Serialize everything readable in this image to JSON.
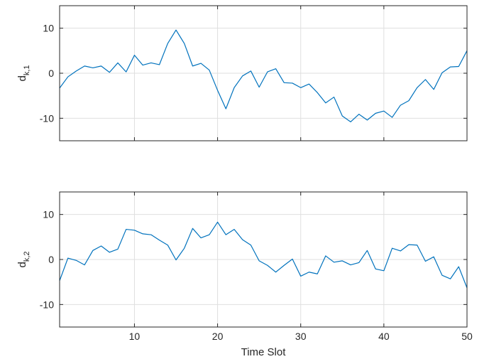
{
  "chart_data": [
    {
      "type": "line",
      "ylabel": "d",
      "ylabel_sub": "k,1",
      "xlabel": "",
      "xlim": [
        1,
        50
      ],
      "ylim": [
        -15,
        15
      ],
      "xticks": [
        10,
        20,
        30,
        40,
        50
      ],
      "yticks": [
        -10,
        0,
        10
      ],
      "grid": true,
      "line_color": "#0072BD",
      "series": [
        {
          "x": [
            1,
            2,
            3,
            4,
            5,
            6,
            7,
            8,
            9,
            10,
            11,
            12,
            13,
            14,
            15,
            16,
            17,
            18,
            19,
            20,
            21,
            22,
            23,
            24,
            25,
            26,
            27,
            28,
            29,
            30,
            31,
            32,
            33,
            34,
            35,
            36,
            37,
            38,
            39,
            40,
            41,
            42,
            43,
            44,
            45,
            46,
            47,
            48,
            49,
            50
          ],
          "values": [
            -3.3,
            -0.8,
            0.5,
            1.6,
            1.2,
            1.6,
            0.2,
            2.3,
            0.3,
            4.0,
            1.8,
            2.3,
            1.9,
            6.6,
            9.6,
            6.6,
            1.6,
            2.2,
            0.7,
            -3.8,
            -7.9,
            -3.2,
            -0.6,
            0.5,
            -3.1,
            0.3,
            1.0,
            -2.1,
            -2.2,
            -3.2,
            -2.4,
            -4.3,
            -6.6,
            -5.3,
            -9.5,
            -10.8,
            -9.1,
            -10.4,
            -8.9,
            -8.4,
            -9.8,
            -7.1,
            -6.1,
            -3.2,
            -1.4,
            -3.6,
            0.1,
            1.4,
            1.5,
            5.0
          ]
        }
      ]
    },
    {
      "type": "line",
      "ylabel": "d",
      "ylabel_sub": "k,2",
      "xlabel": "Time Slot",
      "xlim": [
        1,
        50
      ],
      "ylim": [
        -15,
        15
      ],
      "xticks": [
        10,
        20,
        30,
        40,
        50
      ],
      "yticks": [
        -10,
        0,
        10
      ],
      "grid": true,
      "line_color": "#0072BD",
      "series": [
        {
          "x": [
            1,
            2,
            3,
            4,
            5,
            6,
            7,
            8,
            9,
            10,
            11,
            12,
            13,
            14,
            15,
            16,
            17,
            18,
            19,
            20,
            21,
            22,
            23,
            24,
            25,
            26,
            27,
            28,
            29,
            30,
            31,
            32,
            33,
            34,
            35,
            36,
            37,
            38,
            39,
            40,
            41,
            42,
            43,
            44,
            45,
            46,
            47,
            48,
            49,
            50
          ],
          "values": [
            -4.7,
            0.3,
            -0.2,
            -1.2,
            2.0,
            3.0,
            1.6,
            2.3,
            6.7,
            6.5,
            5.7,
            5.5,
            4.3,
            3.2,
            -0.1,
            2.5,
            6.9,
            4.8,
            5.5,
            8.3,
            5.5,
            6.7,
            4.4,
            3.2,
            -0.3,
            -1.3,
            -2.8,
            -1.3,
            0.1,
            -3.7,
            -2.8,
            -3.2,
            0.8,
            -0.6,
            -0.3,
            -1.2,
            -0.7,
            2.0,
            -2.1,
            -2.5,
            2.5,
            1.9,
            3.3,
            3.2,
            -0.4,
            0.6,
            -3.5,
            -4.3,
            -1.6,
            -6.3
          ]
        }
      ]
    }
  ]
}
